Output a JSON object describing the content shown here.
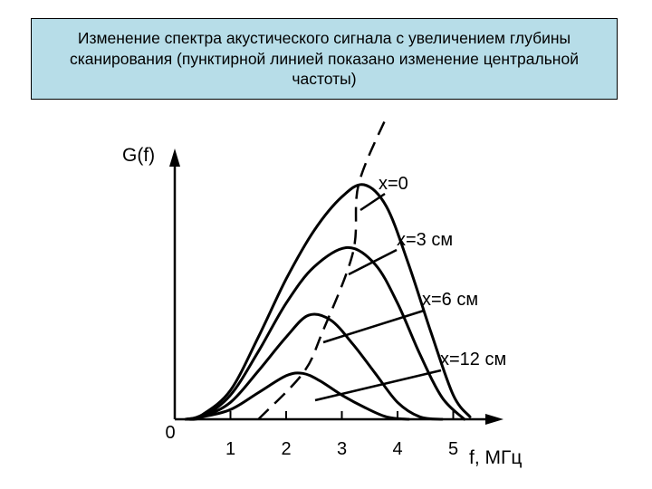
{
  "title": "Изменение спектра акустического сигнала с увеличением глубины сканирования (пунктирной линией показано изменение центральной частоты)",
  "colors": {
    "title_background": "#b7dde8",
    "line": "#000000"
  },
  "chart_data": {
    "type": "line",
    "title": "Изменение спектра акустического сигнала с увеличением глубины сканирования (пунктирной линией показано изменение центральной частоты)",
    "xlabel": "f, МГц",
    "ylabel": "G(f)",
    "origin_label": "0",
    "x_ticks": [
      1,
      2,
      3,
      4,
      5
    ],
    "xlim": [
      0,
      5.9
    ],
    "ylim": [
      0,
      1.0
    ],
    "grid": false,
    "legend": "labels next to curves, right side",
    "series": [
      {
        "name": "x=0",
        "x": [
          0.2,
          0.5,
          1.0,
          1.5,
          2.0,
          2.5,
          3.0,
          3.4,
          3.8,
          4.2,
          4.6,
          5.0,
          5.3
        ],
        "y": [
          0.0,
          0.02,
          0.12,
          0.34,
          0.58,
          0.78,
          0.92,
          0.97,
          0.88,
          0.64,
          0.36,
          0.1,
          0.01
        ]
      },
      {
        "name": "x=3 см",
        "x": [
          0.2,
          0.5,
          1.0,
          1.5,
          2.0,
          2.5,
          3.1,
          3.6,
          4.0,
          4.4,
          4.8,
          5.2
        ],
        "y": [
          0.0,
          0.01,
          0.1,
          0.28,
          0.48,
          0.63,
          0.71,
          0.64,
          0.48,
          0.27,
          0.09,
          0.0
        ]
      },
      {
        "name": "x=6 см",
        "x": [
          0.2,
          0.5,
          1.0,
          1.5,
          2.0,
          2.4,
          2.8,
          3.2,
          3.6,
          4.0,
          4.4,
          4.8
        ],
        "y": [
          0.0,
          0.01,
          0.07,
          0.2,
          0.34,
          0.43,
          0.41,
          0.31,
          0.19,
          0.07,
          0.01,
          0.0
        ]
      },
      {
        "name": "x=12 см",
        "x": [
          0.2,
          0.5,
          1.0,
          1.5,
          2.0,
          2.3,
          2.6,
          3.0,
          3.4,
          3.8,
          4.2
        ],
        "y": [
          0.0,
          0.01,
          0.04,
          0.11,
          0.18,
          0.19,
          0.16,
          0.1,
          0.05,
          0.01,
          0.0
        ]
      }
    ],
    "center_frequency_line": {
      "style": "dashed",
      "x": [
        1.5,
        2.3,
        2.65,
        3.2,
        3.3,
        3.8
      ],
      "y": [
        0.0,
        0.19,
        0.36,
        0.69,
        0.97,
        1.25
      ]
    }
  }
}
